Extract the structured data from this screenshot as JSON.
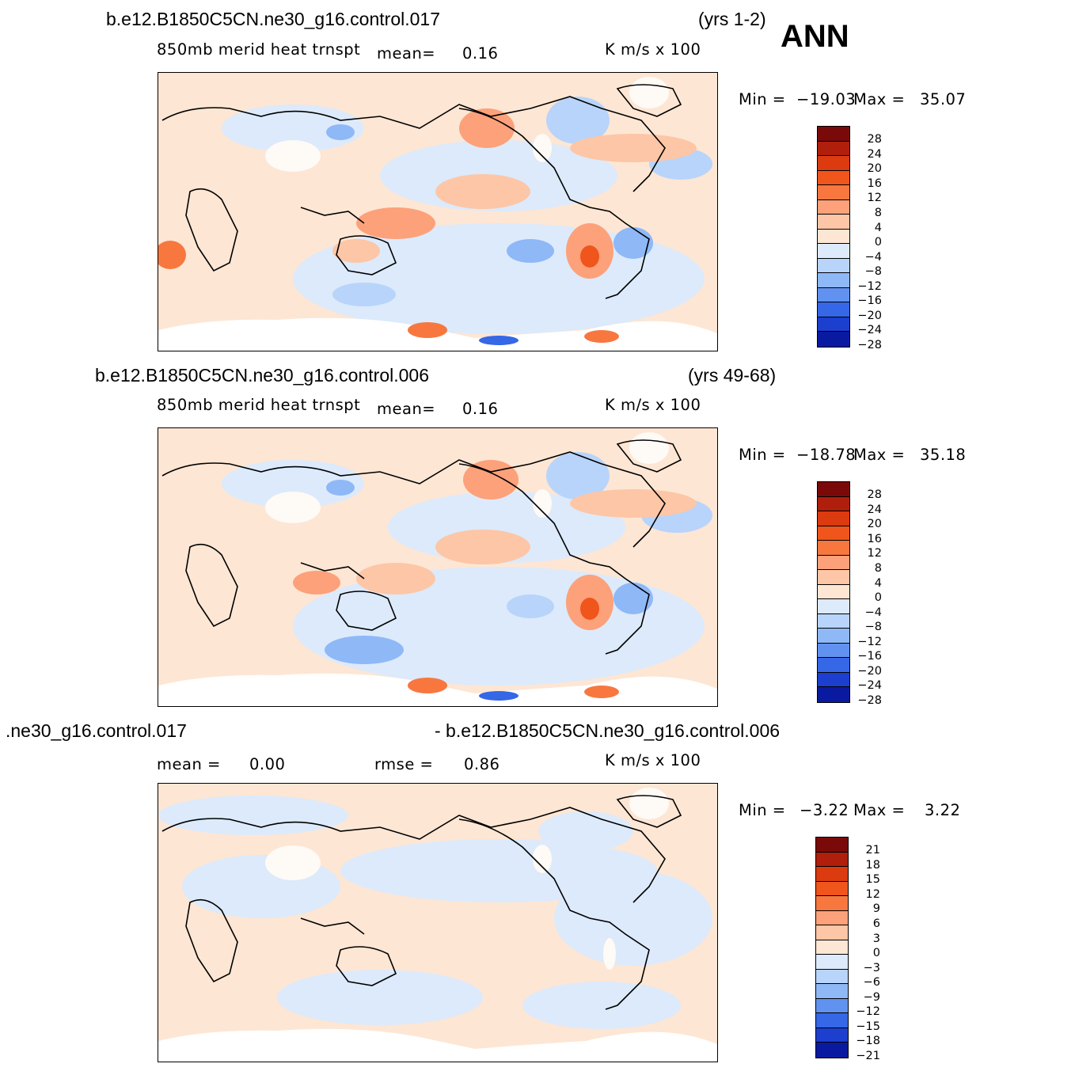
{
  "season": "ANN",
  "units": "K  m/s  x  100",
  "panels": [
    {
      "case": "b.e12.B1850C5CN.ne30_g16.control.017",
      "years": "(yrs 1-2)",
      "variable": "850mb  merid  heat  trnspt",
      "mean_label": "mean=",
      "mean_value": "0.16",
      "min_label": "Min  =",
      "min_value": "−19.03",
      "max_label": "Max  =",
      "max_value": "35.07",
      "levels": [
        "28",
        "24",
        "20",
        "16",
        "12",
        "8",
        "4",
        "0",
        "−4",
        "−8",
        "−12",
        "−16",
        "−20",
        "−24",
        "−28"
      ]
    },
    {
      "case": "b.e12.B1850C5CN.ne30_g16.control.006",
      "years": "(yrs 49-68)",
      "variable": "850mb  merid  heat  trnspt",
      "mean_label": "mean=",
      "mean_value": "0.16",
      "min_label": "Min  =",
      "min_value": "−18.78",
      "max_label": "Max  =",
      "max_value": "35.18",
      "levels": [
        "28",
        "24",
        "20",
        "16",
        "12",
        "8",
        "4",
        "0",
        "−4",
        "−8",
        "−12",
        "−16",
        "−20",
        "−24",
        "−28"
      ]
    },
    {
      "case_left": ".ne30_g16.control.017",
      "case_right": "- b.e12.B1850C5CN.ne30_g16.control.006",
      "mean_label": "mean  =",
      "mean_value": "0.00",
      "rmse_label": "rmse  =",
      "rmse_value": "0.86",
      "min_label": "Min  =",
      "min_value": "−3.22",
      "max_label": "Max  =",
      "max_value": "3.22",
      "levels": [
        "21",
        "18",
        "15",
        "12",
        "9",
        "6",
        "3",
        "0",
        "−3",
        "−6",
        "−9",
        "−12",
        "−15",
        "−18",
        "−21"
      ]
    }
  ],
  "colors": {
    "scale": [
      "#7a0a0a",
      "#b01e0c",
      "#dc3a0f",
      "#f0551c",
      "#f8773f",
      "#fca17a",
      "#fdc6a6",
      "#fde6d4",
      "#dceafb",
      "#b8d4fa",
      "#8fb8f7",
      "#6192f0",
      "#3567e6",
      "#1c3fd0",
      "#0a1aa0"
    ]
  }
}
